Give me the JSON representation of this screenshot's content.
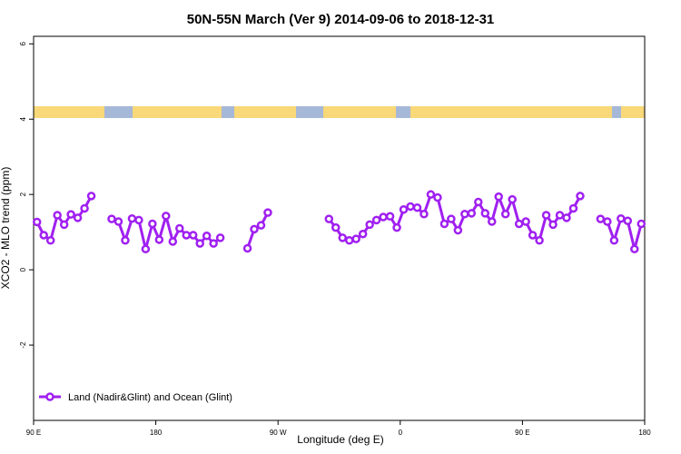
{
  "chart_data": {
    "type": "line",
    "title": "50N-55N March (Ver 9)   2014-09-06 to 2018-12-31",
    "xlabel": "Longitude (deg E)",
    "ylabel": "XCO2 - MLO trend (ppm)",
    "xlim": [
      90,
      540
    ],
    "ylim": [
      -4,
      6.2
    ],
    "xticks": [
      {
        "value": 90,
        "label": "90 E"
      },
      {
        "value": 180,
        "label": "180"
      },
      {
        "value": 270,
        "label": "90 W"
      },
      {
        "value": 360,
        "label": "0"
      },
      {
        "value": 450,
        "label": "90 E"
      },
      {
        "value": 540,
        "label": "180"
      }
    ],
    "yticks": [
      -2,
      0,
      2,
      4,
      6
    ],
    "legend": "bottom-left",
    "x": [
      92.5,
      97.5,
      102.5,
      107.5,
      112.5,
      117.5,
      122.5,
      127.5,
      132.5,
      137.5,
      142.5,
      147.5,
      152.5,
      157.5,
      162.5,
      167.5,
      172.5,
      177.5,
      182.5,
      187.5,
      192.5,
      197.5,
      202.5,
      207.5,
      212.5,
      217.5,
      222.5,
      227.5,
      232.5,
      237.5,
      242.5,
      247.5,
      252.5,
      257.5,
      262.5,
      267.5,
      272.5,
      277.5,
      282.5,
      287.5,
      292.5,
      297.5,
      302.5,
      307.5,
      312.5,
      317.5,
      322.5,
      327.5,
      332.5,
      337.5,
      342.5,
      347.5,
      352.5,
      357.5,
      362.5,
      367.5,
      372.5,
      377.5,
      382.5,
      387.5,
      392.5,
      397.5,
      402.5,
      407.5,
      412.5,
      417.5,
      422.5,
      427.5,
      432.5,
      437.5,
      442.5,
      447.5,
      452.5,
      457.5,
      462.5,
      467.5,
      472.5,
      477.5,
      482.5,
      487.5,
      492.5,
      497.5,
      502.5,
      507.5,
      512.5,
      517.5,
      522.5,
      527.5,
      532.5,
      537.5
    ],
    "series": [
      {
        "name": "Land (Nadir&Glint) and Ocean (Glint)",
        "color": "#a020f0",
        "values": [
          1.27,
          0.92,
          0.78,
          1.45,
          1.2,
          1.47,
          1.38,
          1.63,
          1.96,
          null,
          null,
          1.35,
          1.28,
          0.78,
          1.36,
          1.32,
          0.55,
          1.22,
          0.8,
          1.43,
          0.75,
          1.1,
          0.92,
          0.92,
          0.7,
          0.9,
          0.7,
          0.85,
          null,
          null,
          null,
          0.57,
          1.08,
          1.18,
          1.52,
          null,
          null,
          null,
          null,
          null,
          null,
          null,
          null,
          1.35,
          1.12,
          0.85,
          0.78,
          0.82,
          0.95,
          1.2,
          1.32,
          1.4,
          1.42,
          1.12,
          1.6,
          1.68,
          1.65,
          1.48,
          2.0,
          1.92,
          1.22,
          1.35,
          1.05,
          1.48,
          1.5,
          1.8,
          1.5,
          1.28,
          1.94,
          1.48,
          1.87,
          1.22,
          1.28,
          0.92,
          0.78,
          1.45,
          1.2,
          1.45,
          1.38,
          1.63,
          1.96,
          null,
          null,
          1.35,
          1.28,
          0.78,
          1.36,
          1.3,
          0.55,
          1.22
        ]
      }
    ]
  }
}
